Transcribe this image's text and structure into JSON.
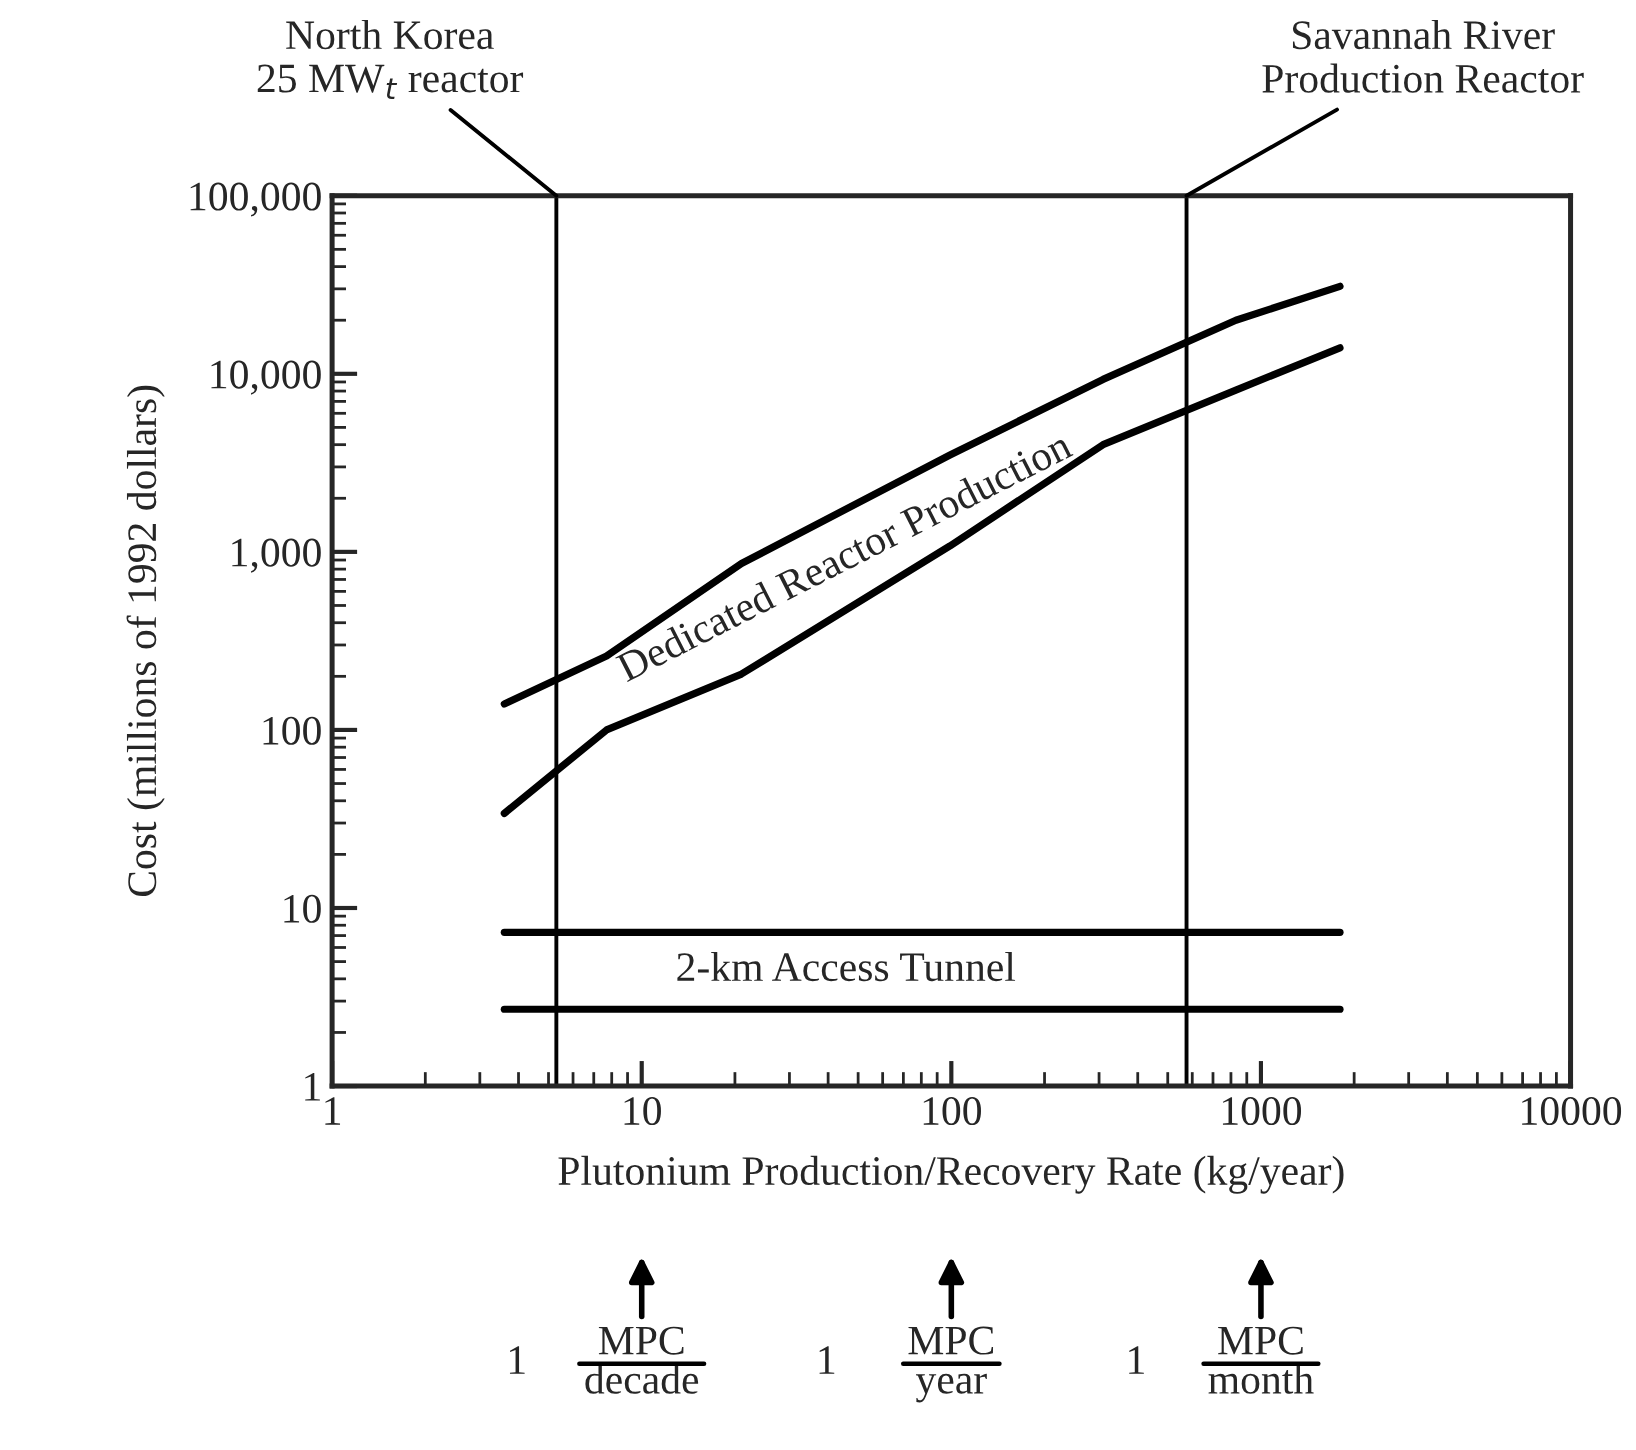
{
  "chart_data": {
    "type": "line",
    "xlabel": "Plutonium Production/Recovery Rate (kg/year)",
    "ylabel": "Cost (millions of 1992 dollars)",
    "log": "xy",
    "x": [
      3.6,
      7.7,
      21,
      99,
      309,
      830,
      1800
    ],
    "series": [
      {
        "name": "Dedicated Reactor Production",
        "color": "#000000",
        "values": [
          140,
          260,
          860,
          3500,
          9300,
          20000,
          31000
        ]
      },
      {
        "color": "#000000",
        "values": [
          34,
          100,
          206,
          1080,
          4000,
          8100,
          14000
        ]
      },
      {
        "name": "2-km Access Tunnel",
        "color": "#000000",
        "values": [
          7.3,
          7.3,
          7.3,
          7.3,
          7.3,
          7.3,
          7.3
        ]
      },
      {
        "color": "#000000",
        "values": [
          2.7,
          2.7,
          2.7,
          2.7,
          2.7,
          2.7,
          2.7
        ]
      }
    ],
    "xlim": [
      1,
      10000
    ],
    "ylim": [
      1,
      100000
    ],
    "xticks": [
      1,
      10,
      100,
      1000,
      10000
    ],
    "yticks": [
      1,
      10,
      100,
      {
        "value": 1000,
        "label": "1,000"
      },
      {
        "value": 10000,
        "label": "10,000"
      },
      {
        "value": 100000,
        "label": "100,000"
      }
    ],
    "ref_lines": [
      {
        "axis": "x",
        "value": 5.3,
        "label": "North Korea\n25 MW$_{t}$ reactor"
      },
      {
        "axis": "x",
        "value": 575,
        "label": "Savannah River\nProduction Reactor"
      }
    ],
    "annotations": [
      "1",
      "MPC\ndecade",
      "1",
      "MPC\nyear",
      "1",
      "MPC\nmonth"
    ],
    "line_style": "solid",
    "marker": "none",
    "grid": false,
    "legend": false
  }
}
